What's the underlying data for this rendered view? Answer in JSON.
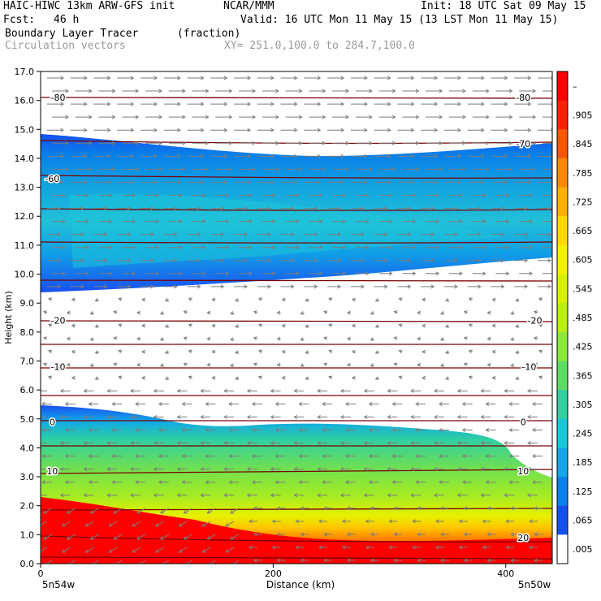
{
  "header": {
    "model": "HAIC-HIWC 13km ARW-GFS init",
    "center": "NCAR/MMM",
    "init": "Init: 18 UTC Sat 09 May 15",
    "fcst_label": "Fcst:",
    "fcst_value": "46 h",
    "valid": "Valid: 16 UTC Mon 11 May 15 (13 LST Mon 11 May 15)",
    "field_name": "Boundary Layer Tracer",
    "field_units": "(fraction)",
    "vector_label": "Circulation vectors",
    "xy_label": "XY= 251.0,100.0 to 284.7,100.0"
  },
  "chart_data": {
    "type": "heatmap",
    "title": "Boundary Layer Tracer (fraction)",
    "ylabel": "Height (km)",
    "xlabel": "Distance (km)",
    "ylim": [
      0,
      17
    ],
    "xlim": [
      0,
      440
    ],
    "y_ticks": [
      "0.0",
      "1.0",
      "2.0",
      "3.0",
      "4.0",
      "5.0",
      "6.0",
      "7.0",
      "8.0",
      "9.0",
      "10.0",
      "11.0",
      "12.0",
      "13.0",
      "14.0",
      "15.0",
      "16.0",
      "17.0"
    ],
    "x_ticks": [
      {
        "value": 0,
        "label": "0"
      },
      {
        "value": 200,
        "label": "200"
      },
      {
        "value": 400,
        "label": "400"
      }
    ],
    "x_endpoints": {
      "left": "5n54w",
      "right": "5n50w"
    },
    "colorbar": {
      "labels": [
        "–",
        ".905",
        ".845",
        ".785",
        ".725",
        ".665",
        ".605",
        ".545",
        ".485",
        ".425",
        ".365",
        ".305",
        ".245",
        ".185",
        ".125",
        ".065",
        ".005"
      ],
      "colors": [
        "#ff0000",
        "#ff2200",
        "#ff5500",
        "#ff8800",
        "#ffb000",
        "#ffd800",
        "#f5f000",
        "#d8f000",
        "#b8ee10",
        "#8ce838",
        "#5cdc60",
        "#30d0a0",
        "#18c8d8",
        "#10a8e8",
        "#0880f0",
        "#1450f0",
        "#ffffff"
      ]
    },
    "contour_labels": [
      {
        "text": "-80",
        "x": 15,
        "y": 16.1
      },
      {
        "text": "-80",
        "x": 415,
        "y": 16.1
      },
      {
        "text": "-70",
        "x": 415,
        "y": 14.5
      },
      {
        "text": "-60",
        "x": 10,
        "y": 13.3
      },
      {
        "text": "-20",
        "x": 15,
        "y": 8.4
      },
      {
        "text": "-20",
        "x": 425,
        "y": 8.4
      },
      {
        "text": "-10",
        "x": 15,
        "y": 6.8
      },
      {
        "text": "-10",
        "x": 420,
        "y": 6.8
      },
      {
        "text": "0",
        "x": 10,
        "y": 4.9
      },
      {
        "text": "0",
        "x": 415,
        "y": 4.9
      },
      {
        "text": "10",
        "x": 10,
        "y": 3.2
      },
      {
        "text": "10",
        "x": 415,
        "y": 3.2
      },
      {
        "text": "20",
        "x": 415,
        "y": 0.9
      }
    ],
    "series": [
      {
        "layer": "upper-tracer-band",
        "top_km": [
          [
            0,
            14.9
          ],
          [
            100,
            14.6
          ],
          [
            200,
            14.1
          ],
          [
            300,
            14.0
          ],
          [
            380,
            14.4
          ],
          [
            440,
            14.6
          ]
        ],
        "bottom_km": [
          [
            0,
            9.4
          ],
          [
            100,
            9.6
          ],
          [
            200,
            9.9
          ],
          [
            300,
            10.2
          ],
          [
            380,
            10.5
          ],
          [
            440,
            10.8
          ]
        ],
        "peak_value": 0.185
      },
      {
        "layer": "boundary-layer",
        "top_km": [
          [
            0,
            5.5
          ],
          [
            60,
            5.3
          ],
          [
            150,
            4.6
          ],
          [
            200,
            4.8
          ],
          [
            280,
            4.7
          ],
          [
            360,
            4.6
          ],
          [
            400,
            4.3
          ],
          [
            440,
            3.1
          ]
        ],
        "peak_value": 0.905
      }
    ],
    "grid": false,
    "legend": "right colorbar"
  }
}
